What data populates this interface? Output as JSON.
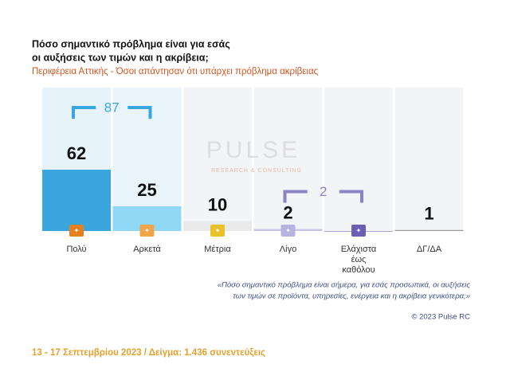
{
  "chart_data": {
    "type": "bar",
    "title_lines": [
      "Πόσο σημαντικό πρόβλημα είναι για εσάς",
      "οι αυξήσεις των τιμών και η ακρίβεια;"
    ],
    "subtitle": "Περιφέρεια Αττικής - Όσοι απάντησαν ότι υπάρχει πρόβλημα ακρίβειας",
    "categories": [
      "Πολύ",
      "Αρκετά",
      "Μέτρια",
      "Λίγο",
      "Ελάχιστα έως καθόλου",
      "ΔΓ/ΔΑ"
    ],
    "values": [
      62,
      25,
      10,
      2,
      0,
      1
    ],
    "colors": [
      "#3aa6df",
      "#8fd9f6",
      "#e9e9e9",
      "#c9c5e7",
      "#a9a3d6",
      "#9a9a9a"
    ],
    "panel_colors": [
      "#e6f3fb",
      "#e9f5fb",
      "#f3f4f6",
      "#f3f4f6",
      "#f3f4f6",
      "#f3f4f6"
    ],
    "icon_colors": [
      "#e5811c",
      "#f0a54a",
      "#e9c22a",
      "#b7b2de",
      "#6b5fb5",
      null
    ],
    "ylim": [
      0,
      145
    ],
    "groups": [
      {
        "value": 87,
        "from": 0,
        "to": 1,
        "color": "#3aa6df"
      },
      {
        "value": 2,
        "from": 3,
        "to": 4,
        "color": "#8a84c6"
      }
    ],
    "watermark": {
      "name": "PULSE",
      "tagline": "RESEARCH & CONSULTING"
    },
    "note_lines": [
      "«Πόσο σημαντικό πρόβλημα είναι σήμερα, για εσάς προσωπικά, οι αυξήσεις",
      "των τιμών σε προϊόντα, υπηρεσίες, ενέργεια και η ακρίβεια γενικότερα;»"
    ],
    "copyright": "© 2023 Pulse RC",
    "footer": "13 - 17  Σεπτεμβρίου  2023  /  Δείγμα:  1.436 συνεντεύξεις"
  }
}
